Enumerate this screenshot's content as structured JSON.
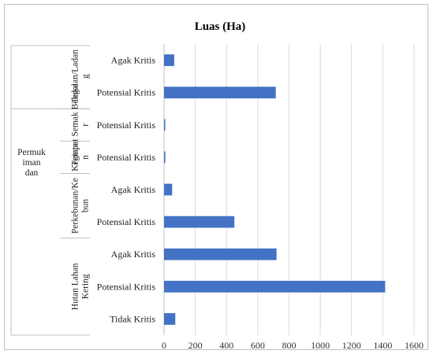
{
  "chart_data": {
    "type": "bar",
    "orientation": "horizontal",
    "title": "Luas (Ha)",
    "color": "#4472C4",
    "xlim": [
      0,
      1600
    ],
    "x_ticks": [
      "0",
      "200",
      "400",
      "600",
      "800",
      "1000",
      "1200",
      "1400",
      "1600"
    ],
    "grid": "vertical",
    "legend": "none",
    "outer_group_label": "Permuk iman dan Kegiata n",
    "groups": [
      {
        "label": "Tegalan/Ladan g",
        "categories": [
          "Agak Kritis",
          "Potensial Kritis"
        ],
        "values": [
          65,
          715
        ]
      },
      {
        "label": "Tempat Semak Beluka r",
        "categories": [
          "Potensial Kritis"
        ],
        "values": [
          5
        ]
      },
      {
        "label": "Kegiata n",
        "categories": [
          "Potensial Kritis"
        ],
        "values": [
          8
        ]
      },
      {
        "label": "Perkebunan/Ke bun",
        "categories": [
          "Agak Kritis",
          "Potensial Kritis"
        ],
        "values": [
          52,
          450
        ]
      },
      {
        "label": "Hutan Lahan Kering",
        "categories": [
          "Agak Kritis",
          "Potensial Kritis",
          "Tidak Kritis"
        ],
        "values": [
          720,
          1415,
          72
        ]
      }
    ]
  }
}
